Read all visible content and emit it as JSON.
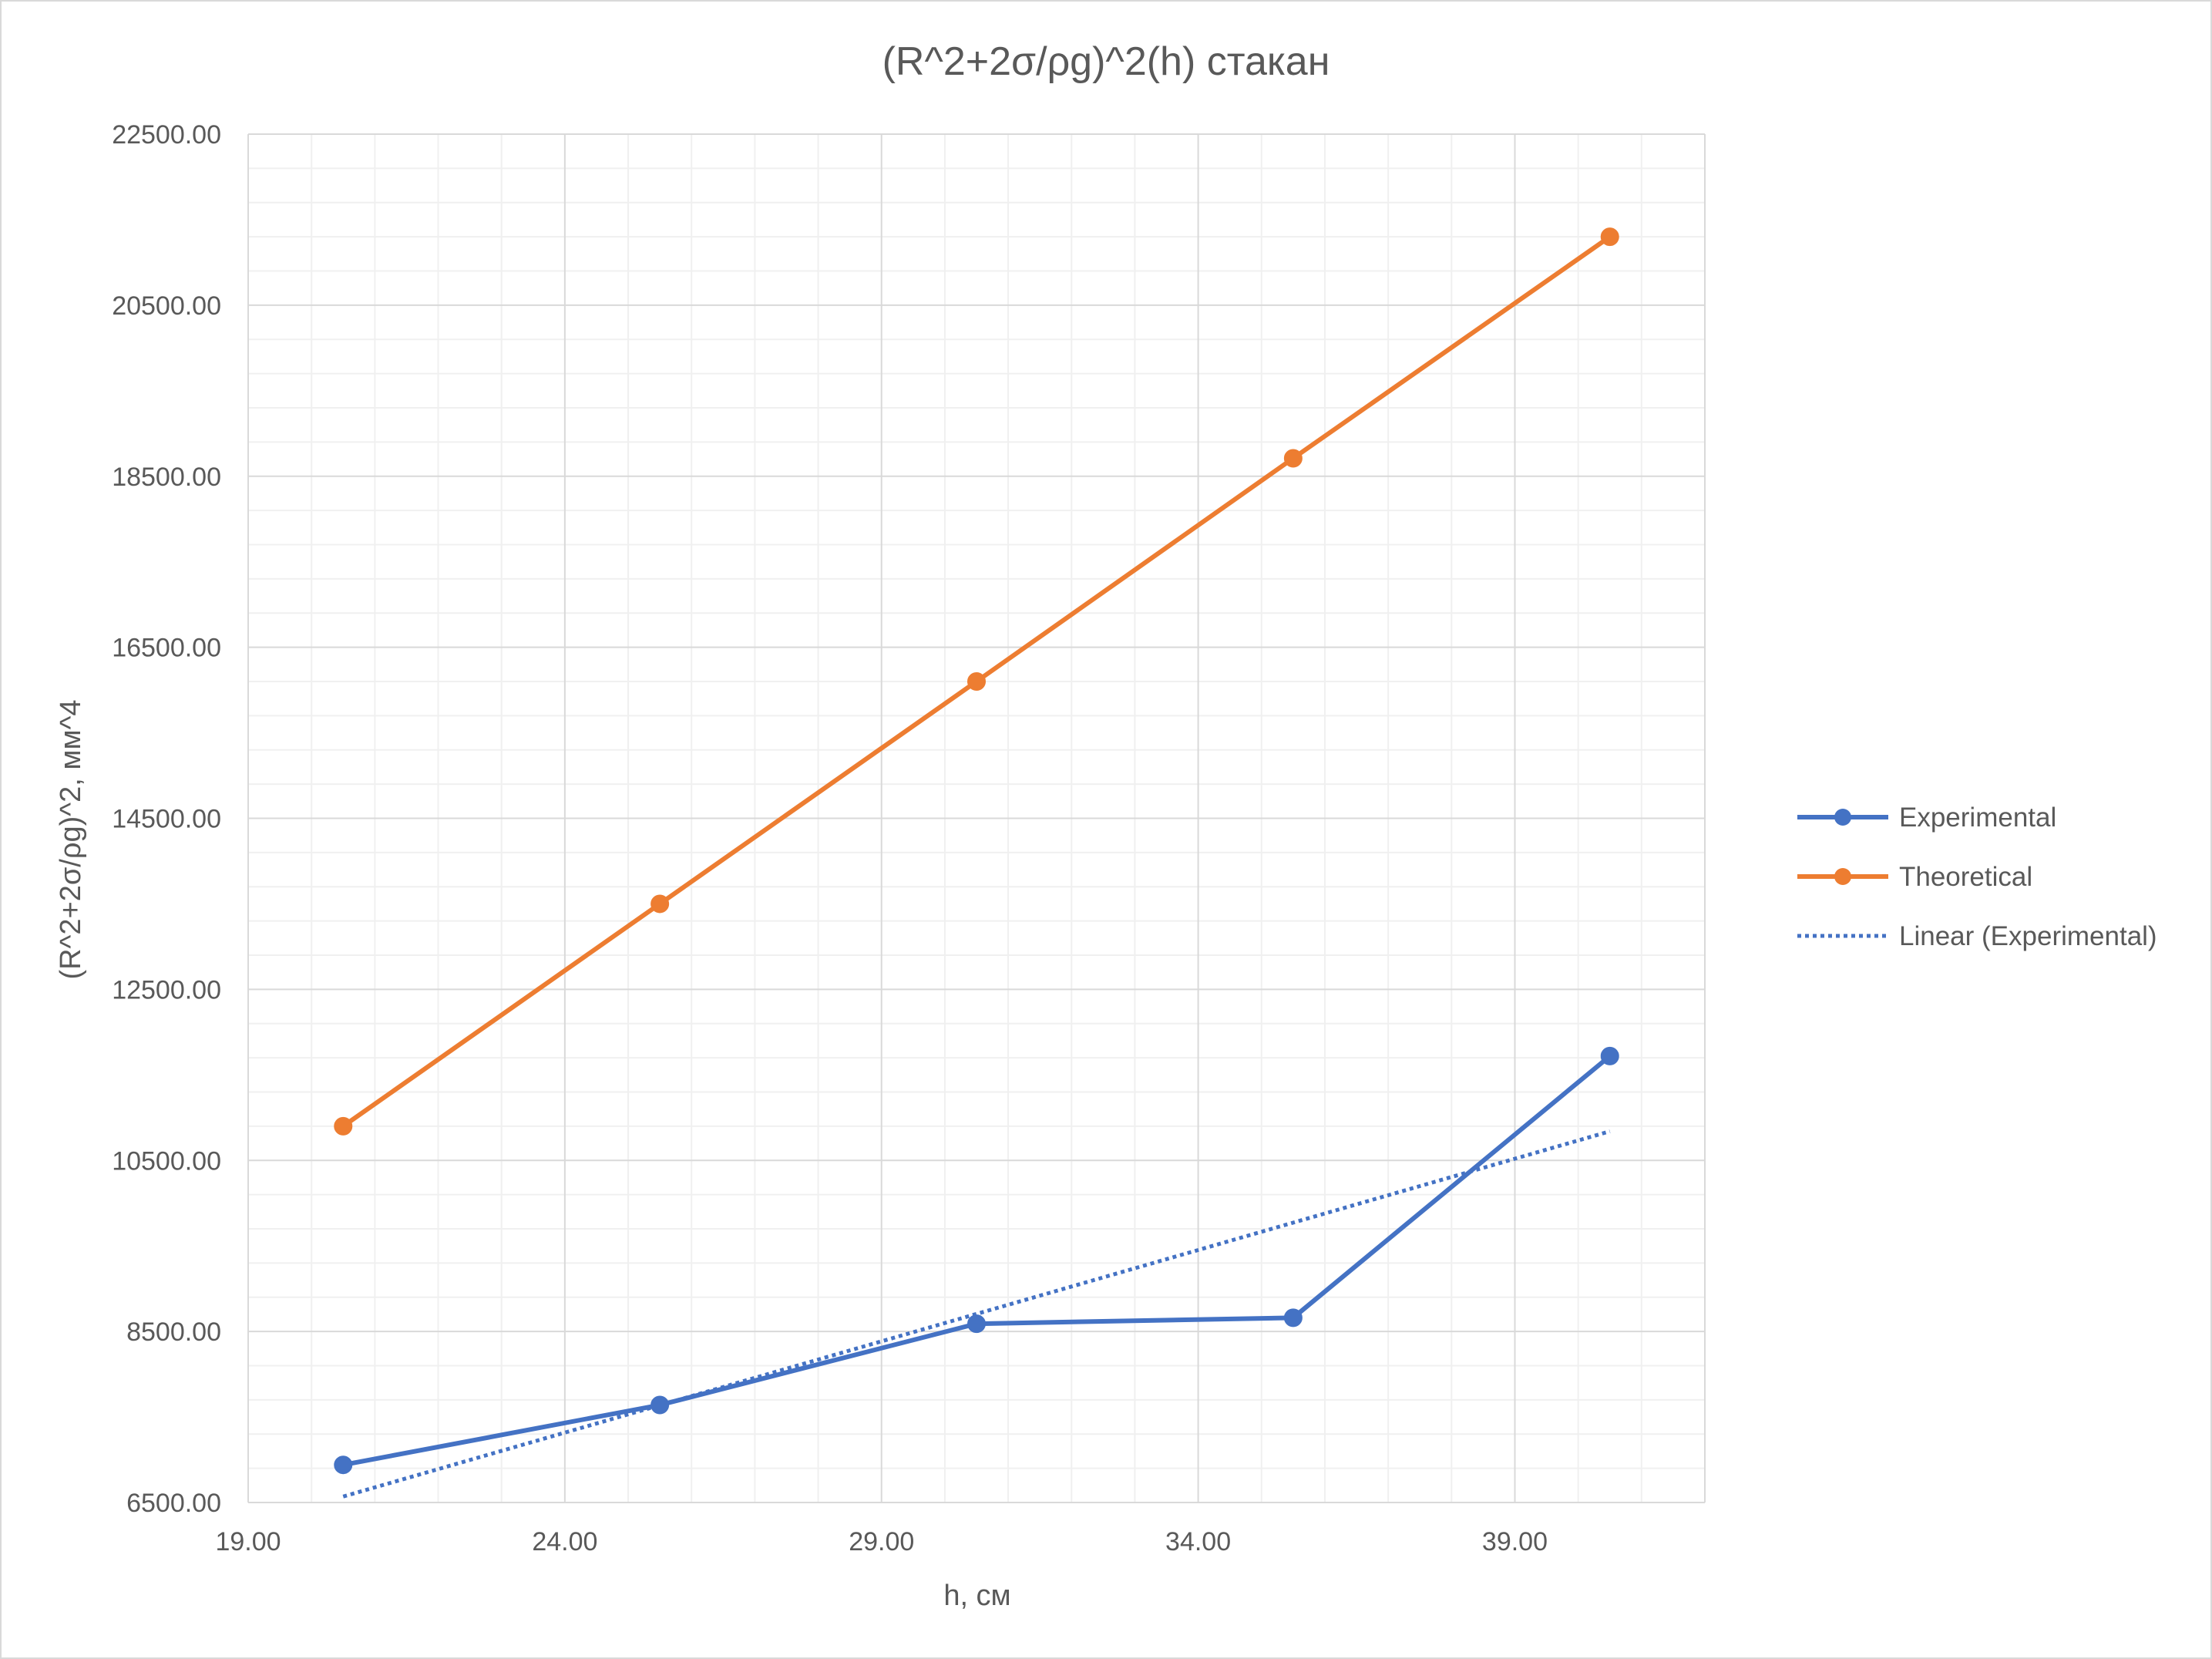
{
  "chart_data": {
    "type": "line",
    "title": "(R^2+2σ/ρg)^2(h) стакан",
    "xlabel": "h, см",
    "ylabel": "(R^2+2σ/ρg)^2, мм^4",
    "xlim": [
      19,
      42
    ],
    "ylim": [
      6500,
      22500
    ],
    "x_ticks": [
      19,
      24,
      29,
      34,
      39
    ],
    "x_tick_labels": [
      "19.00",
      "24.00",
      "29.00",
      "34.00",
      "39.00"
    ],
    "y_ticks": [
      6500,
      8500,
      10500,
      12500,
      14500,
      16500,
      18500,
      20500,
      22500
    ],
    "y_tick_labels": [
      "6500.00",
      "8500.00",
      "10500.00",
      "12500.00",
      "14500.00",
      "16500.00",
      "18500.00",
      "20500.00",
      "22500.00"
    ],
    "x_minor_step": 1,
    "y_minor_step": 400,
    "grid": true,
    "legend_position": "right",
    "series": [
      {
        "name": "Experimental",
        "color": "#4472C4",
        "style": "solid-markers",
        "x": [
          20.5,
          25.5,
          30.5,
          35.5,
          40.5
        ],
        "y": [
          6940,
          7640,
          8590,
          8660,
          11720
        ]
      },
      {
        "name": "Theoretical",
        "color": "#ED7D31",
        "style": "solid-markers",
        "x": [
          20.5,
          25.5,
          30.5,
          35.5,
          40.5
        ],
        "y": [
          10900,
          13500,
          16100,
          18710,
          21300
        ]
      },
      {
        "name": "Linear (Experimental)",
        "color": "#4472C4",
        "style": "dotted",
        "x": [
          20.5,
          40.5
        ],
        "y": [
          6570,
          10840
        ]
      }
    ]
  }
}
